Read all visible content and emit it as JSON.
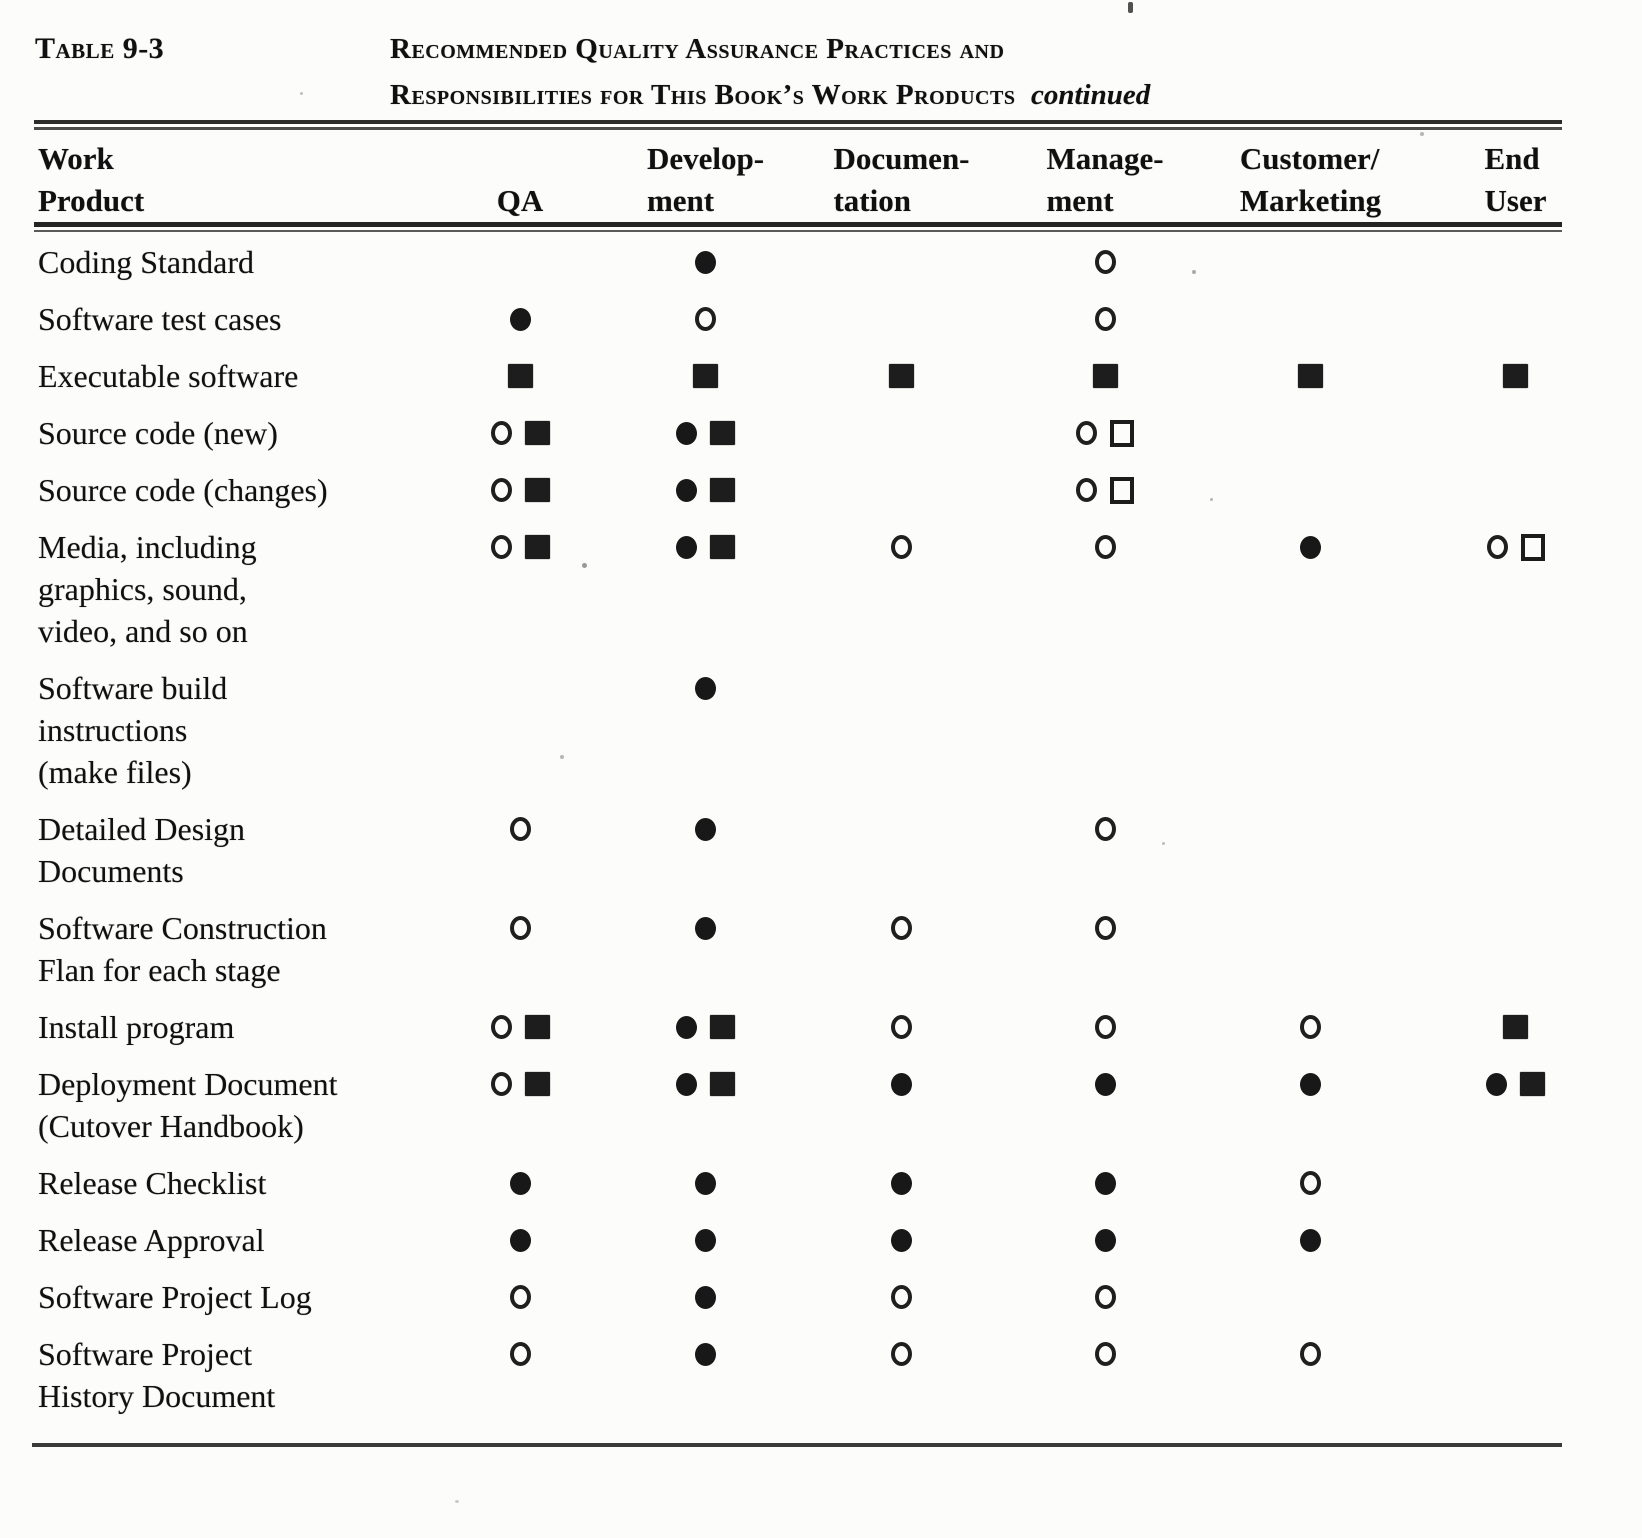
{
  "caption": {
    "label": "Table 9-3",
    "title_line1": "Recommended Quality Assurance Practices and",
    "title_line2": "Responsibilities for This Book’s Work Products",
    "continued": "continued"
  },
  "columns": [
    {
      "id": "work_product",
      "line1": "Work",
      "line2": "Product"
    },
    {
      "id": "qa",
      "line1": "",
      "line2": "QA"
    },
    {
      "id": "development",
      "line1": "Develop-",
      "line2": "ment"
    },
    {
      "id": "documentation",
      "line1": "Documen-",
      "line2": "tation"
    },
    {
      "id": "management",
      "line1": "Manage-",
      "line2": "ment"
    },
    {
      "id": "customer_marketing",
      "line1": "Customer/",
      "line2": "Marketing"
    },
    {
      "id": "end_user",
      "line1": "End",
      "line2": "User"
    }
  ],
  "symbol_colors": {
    "ink": "#181818",
    "paper": "#fcfcfa"
  },
  "rows": [
    {
      "label_lines": [
        "Coding Standard"
      ],
      "cells": [
        [],
        [
          "filled-circle"
        ],
        [],
        [
          "open-circle"
        ],
        [],
        []
      ]
    },
    {
      "label_lines": [
        "Software test cases"
      ],
      "cells": [
        [
          "filled-circle"
        ],
        [
          "open-circle"
        ],
        [],
        [
          "open-circle"
        ],
        [],
        []
      ]
    },
    {
      "label_lines": [
        "Executable software"
      ],
      "cells": [
        [
          "filled-square"
        ],
        [
          "filled-square"
        ],
        [
          "filled-square"
        ],
        [
          "filled-square"
        ],
        [
          "filled-square"
        ],
        [
          "filled-square"
        ]
      ]
    },
    {
      "label_lines": [
        "Source code (new)"
      ],
      "cells": [
        [
          "open-circle",
          "filled-square"
        ],
        [
          "filled-circle",
          "filled-square"
        ],
        [],
        [
          "open-circle",
          "open-square"
        ],
        [],
        []
      ]
    },
    {
      "label_lines": [
        "Source code (changes)"
      ],
      "cells": [
        [
          "open-circle",
          "filled-square"
        ],
        [
          "filled-circle",
          "filled-square"
        ],
        [],
        [
          "open-circle",
          "open-square"
        ],
        [],
        []
      ]
    },
    {
      "label_lines": [
        "Media, including",
        "graphics, sound,",
        "video, and so on"
      ],
      "cells": [
        [
          "open-circle",
          "filled-square"
        ],
        [
          "filled-circle",
          "filled-square"
        ],
        [
          "open-circle"
        ],
        [
          "open-circle"
        ],
        [
          "filled-circle"
        ],
        [
          "open-circle",
          "open-square"
        ]
      ]
    },
    {
      "label_lines": [
        "Software  build",
        "instructions",
        "(make files)"
      ],
      "cells": [
        [],
        [
          "filled-circle"
        ],
        [],
        [],
        [],
        []
      ]
    },
    {
      "label_lines": [
        "Detailed Design",
        "Documents"
      ],
      "cells": [
        [
          "open-circle"
        ],
        [
          "filled-circle"
        ],
        [],
        [
          "open-circle"
        ],
        [],
        []
      ]
    },
    {
      "label_lines": [
        "Software  Construction",
        "Flan for each stage"
      ],
      "cells": [
        [
          "open-circle"
        ],
        [
          "filled-circle"
        ],
        [
          "open-circle"
        ],
        [
          "open-circle"
        ],
        [],
        []
      ]
    },
    {
      "label_lines": [
        "Install program"
      ],
      "cells": [
        [
          "open-circle",
          "filled-square"
        ],
        [
          "filled-circle",
          "filled-square"
        ],
        [
          "open-circle"
        ],
        [
          "open-circle"
        ],
        [
          "open-circle"
        ],
        [
          "filled-square"
        ]
      ]
    },
    {
      "label_lines": [
        "Deployment Document",
        "(Cutover  Handbook)"
      ],
      "cells": [
        [
          "open-circle",
          "filled-square"
        ],
        [
          "filled-circle",
          "filled-square"
        ],
        [
          "filled-circle"
        ],
        [
          "filled-circle"
        ],
        [
          "filled-circle"
        ],
        [
          "filled-circle",
          "filled-square"
        ]
      ]
    },
    {
      "label_lines": [
        "Release  Checklist"
      ],
      "cells": [
        [
          "filled-circle"
        ],
        [
          "filled-circle"
        ],
        [
          "filled-circle"
        ],
        [
          "filled-circle"
        ],
        [
          "open-circle"
        ],
        []
      ]
    },
    {
      "label_lines": [
        "Release  Approval"
      ],
      "cells": [
        [
          "filled-circle"
        ],
        [
          "filled-circle"
        ],
        [
          "filled-circle"
        ],
        [
          "filled-circle"
        ],
        [
          "filled-circle"
        ],
        []
      ]
    },
    {
      "label_lines": [
        "Software Project Log"
      ],
      "cells": [
        [
          "open-circle"
        ],
        [
          "filled-circle"
        ],
        [
          "open-circle"
        ],
        [
          "open-circle"
        ],
        [],
        []
      ]
    },
    {
      "label_lines": [
        "Software Project",
        "History Document"
      ],
      "cells": [
        [
          "open-circle"
        ],
        [
          "filled-circle"
        ],
        [
          "open-circle"
        ],
        [
          "open-circle"
        ],
        [
          "open-circle"
        ],
        []
      ]
    }
  ]
}
